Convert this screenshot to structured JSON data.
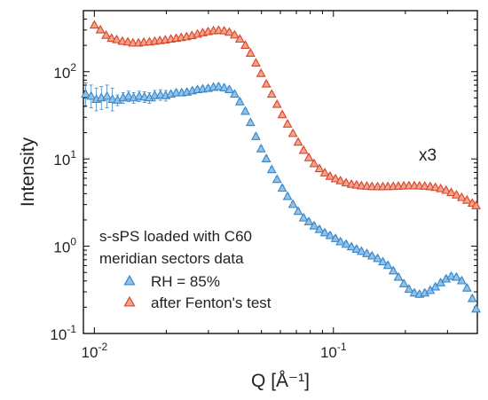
{
  "chart_data": {
    "type": "scatter",
    "xscale": "log",
    "yscale": "log",
    "xlim": [
      0.009,
      0.4
    ],
    "ylim": [
      0.1,
      500
    ],
    "xlabel": "Q [Å⁻¹]",
    "ylabel": "Intensity",
    "x_ticks": [
      {
        "value": 0.01,
        "label": "10",
        "exp": "-2"
      },
      {
        "value": 0.1,
        "label": "10",
        "exp": "-1"
      }
    ],
    "y_ticks": [
      {
        "value": 0.1,
        "label": "10",
        "exp": "-1"
      },
      {
        "value": 1,
        "label": "10",
        "exp": "0"
      },
      {
        "value": 10,
        "label": "10",
        "exp": "1"
      },
      {
        "value": 100,
        "label": "10",
        "exp": "2"
      }
    ],
    "legend": {
      "title_lines": [
        "s-sPS loaded with C60",
        "meridian sectors data"
      ],
      "placement": "bottom-left"
    },
    "annotation": "x3",
    "series": [
      {
        "name": "RH = 85%",
        "color": "#3a86c8",
        "fill": "#8fc3ea",
        "points": [
          [
            0.0092,
            55
          ],
          [
            0.0097,
            52
          ],
          [
            0.0102,
            48
          ],
          [
            0.0107,
            50
          ],
          [
            0.0113,
            52
          ],
          [
            0.0119,
            48
          ],
          [
            0.0125,
            47
          ],
          [
            0.0132,
            50
          ],
          [
            0.0139,
            52
          ],
          [
            0.0146,
            50
          ],
          [
            0.0154,
            52
          ],
          [
            0.0162,
            51
          ],
          [
            0.017,
            50
          ],
          [
            0.0179,
            53
          ],
          [
            0.0189,
            54
          ],
          [
            0.0199,
            53
          ],
          [
            0.0209,
            55
          ],
          [
            0.022,
            57
          ],
          [
            0.0232,
            57
          ],
          [
            0.0244,
            58
          ],
          [
            0.0257,
            60
          ],
          [
            0.027,
            62
          ],
          [
            0.0284,
            63
          ],
          [
            0.0299,
            64
          ],
          [
            0.0315,
            66
          ],
          [
            0.0331,
            67
          ],
          [
            0.0349,
            65
          ],
          [
            0.0367,
            62
          ],
          [
            0.0386,
            55
          ],
          [
            0.0406,
            45
          ],
          [
            0.0428,
            35
          ],
          [
            0.045,
            26
          ],
          [
            0.0474,
            18
          ],
          [
            0.0498,
            13
          ],
          [
            0.0524,
            10
          ],
          [
            0.0552,
            7.5
          ],
          [
            0.0581,
            5.8
          ],
          [
            0.0611,
            4.6
          ],
          [
            0.0643,
            3.7
          ],
          [
            0.0677,
            3.0
          ],
          [
            0.0712,
            2.5
          ],
          [
            0.075,
            2.1
          ],
          [
            0.0789,
            1.9
          ],
          [
            0.083,
            1.7
          ],
          [
            0.0874,
            1.55
          ],
          [
            0.092,
            1.42
          ],
          [
            0.0968,
            1.32
          ],
          [
            0.102,
            1.22
          ],
          [
            0.107,
            1.12
          ],
          [
            0.113,
            1.05
          ],
          [
            0.119,
            0.98
          ],
          [
            0.125,
            0.92
          ],
          [
            0.131,
            0.87
          ],
          [
            0.138,
            0.82
          ],
          [
            0.145,
            0.77
          ],
          [
            0.153,
            0.72
          ],
          [
            0.161,
            0.66
          ],
          [
            0.169,
            0.6
          ],
          [
            0.178,
            0.52
          ],
          [
            0.187,
            0.44
          ],
          [
            0.197,
            0.37
          ],
          [
            0.207,
            0.32
          ],
          [
            0.218,
            0.29
          ],
          [
            0.229,
            0.28
          ],
          [
            0.241,
            0.29
          ],
          [
            0.254,
            0.31
          ],
          [
            0.267,
            0.34
          ],
          [
            0.281,
            0.38
          ],
          [
            0.296,
            0.42
          ],
          [
            0.311,
            0.45
          ],
          [
            0.327,
            0.44
          ],
          [
            0.344,
            0.4
          ],
          [
            0.362,
            0.33
          ],
          [
            0.381,
            0.25
          ],
          [
            0.395,
            0.19
          ]
        ]
      },
      {
        "name": "after Fenton's test",
        "color": "#d9452b",
        "fill": "#f2a58e",
        "points": [
          [
            0.01,
            340
          ],
          [
            0.0106,
            300
          ],
          [
            0.0112,
            260
          ],
          [
            0.0118,
            240
          ],
          [
            0.0124,
            232
          ],
          [
            0.0131,
            222
          ],
          [
            0.0138,
            218
          ],
          [
            0.0145,
            212
          ],
          [
            0.0153,
            212
          ],
          [
            0.0161,
            216
          ],
          [
            0.017,
            218
          ],
          [
            0.0179,
            222
          ],
          [
            0.0188,
            226
          ],
          [
            0.0198,
            230
          ],
          [
            0.0209,
            235
          ],
          [
            0.022,
            240
          ],
          [
            0.0231,
            245
          ],
          [
            0.0243,
            250
          ],
          [
            0.0256,
            258
          ],
          [
            0.027,
            268
          ],
          [
            0.0284,
            278
          ],
          [
            0.0299,
            286
          ],
          [
            0.0315,
            293
          ],
          [
            0.0331,
            296
          ],
          [
            0.0349,
            292
          ],
          [
            0.0367,
            282
          ],
          [
            0.0386,
            262
          ],
          [
            0.0406,
            235
          ],
          [
            0.0428,
            200
          ],
          [
            0.045,
            162
          ],
          [
            0.0474,
            125
          ],
          [
            0.0498,
            95
          ],
          [
            0.0524,
            72
          ],
          [
            0.0552,
            55
          ],
          [
            0.0581,
            42
          ],
          [
            0.0611,
            32
          ],
          [
            0.0643,
            25
          ],
          [
            0.0677,
            19.5
          ],
          [
            0.0712,
            15.5
          ],
          [
            0.075,
            12.5
          ],
          [
            0.0789,
            10.3
          ],
          [
            0.083,
            8.8
          ],
          [
            0.0874,
            7.7
          ],
          [
            0.092,
            6.9
          ],
          [
            0.0968,
            6.3
          ],
          [
            0.102,
            5.9
          ],
          [
            0.107,
            5.6
          ],
          [
            0.113,
            5.3
          ],
          [
            0.119,
            5.1
          ],
          [
            0.125,
            5.0
          ],
          [
            0.131,
            4.9
          ],
          [
            0.138,
            4.85
          ],
          [
            0.145,
            4.8
          ],
          [
            0.153,
            4.78
          ],
          [
            0.161,
            4.78
          ],
          [
            0.169,
            4.8
          ],
          [
            0.178,
            4.82
          ],
          [
            0.187,
            4.85
          ],
          [
            0.197,
            4.88
          ],
          [
            0.207,
            4.9
          ],
          [
            0.218,
            4.9
          ],
          [
            0.229,
            4.88
          ],
          [
            0.241,
            4.85
          ],
          [
            0.254,
            4.8
          ],
          [
            0.267,
            4.7
          ],
          [
            0.281,
            4.55
          ],
          [
            0.296,
            4.35
          ],
          [
            0.311,
            4.1
          ],
          [
            0.327,
            3.85
          ],
          [
            0.344,
            3.6
          ],
          [
            0.362,
            3.35
          ],
          [
            0.381,
            3.1
          ],
          [
            0.395,
            2.9
          ]
        ]
      }
    ]
  }
}
